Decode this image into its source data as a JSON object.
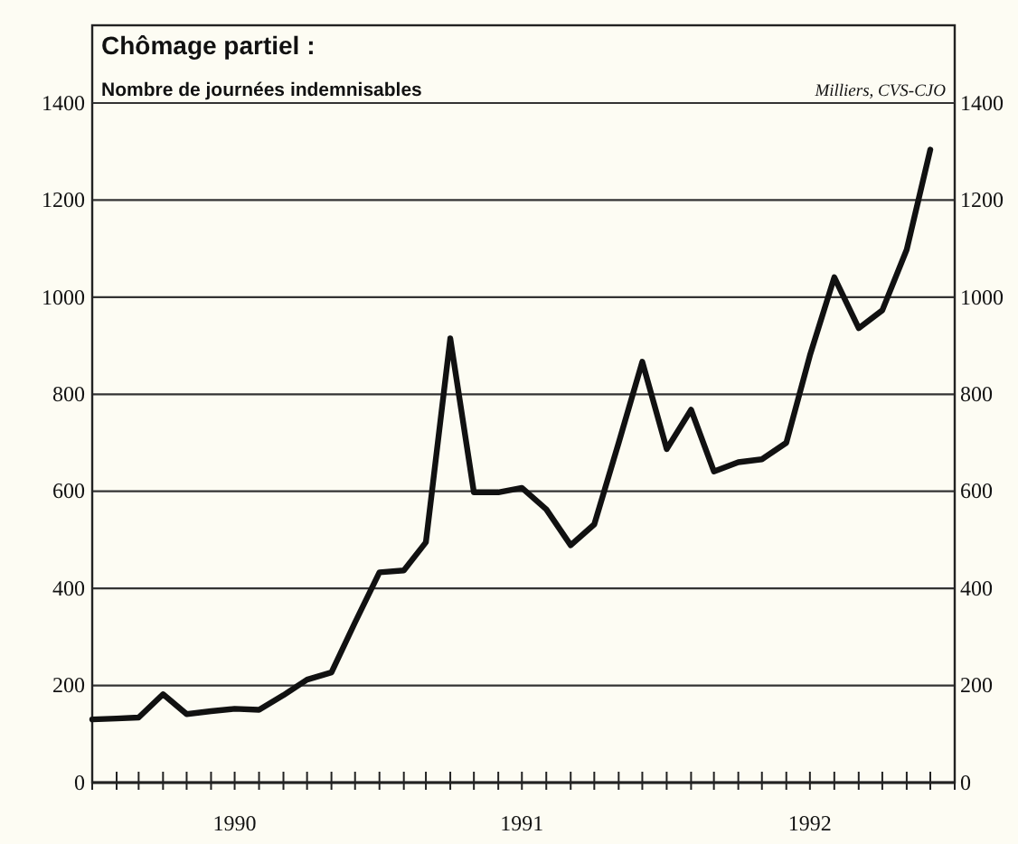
{
  "chart_data": {
    "type": "line",
    "title": "Chômage partiel :",
    "subtitle": "Nombre de journées indemnisables",
    "annotations": [
      "Milliers, CVS-CJO"
    ],
    "x": [
      "1990-01",
      "1990-02",
      "1990-03",
      "1990-04",
      "1990-05",
      "1990-06",
      "1990-07",
      "1990-08",
      "1990-09",
      "1990-10",
      "1990-11",
      "1990-12",
      "1991-01",
      "1991-02",
      "1991-03",
      "1991-04",
      "1991-05",
      "1991-06",
      "1991-07",
      "1991-08",
      "1991-09",
      "1991-10",
      "1991-11",
      "1991-12",
      "1992-01",
      "1992-02",
      "1992-03",
      "1992-04",
      "1992-05",
      "1992-06",
      "1992-07",
      "1992-08",
      "1992-09",
      "1992-10",
      "1992-11",
      "1992-12"
    ],
    "series": [
      {
        "color": "#111111",
        "values": [
          130,
          132,
          134,
          182,
          141,
          147,
          152,
          150,
          180,
          212,
          227,
          330,
          433,
          437,
          495,
          915,
          598,
          598,
          607,
          563,
          489,
          532,
          700,
          867,
          687,
          768,
          641,
          660,
          666,
          700,
          880,
          1041,
          936,
          973,
          1098,
          1304
        ]
      }
    ],
    "xlim": [
      "1990-01",
      "1993-01"
    ],
    "xticks": [
      {
        "value": "1990-01",
        "label": null
      },
      {
        "value": "1990-02",
        "label": null
      },
      {
        "value": "1990-03",
        "label": null
      },
      {
        "value": "1990-04",
        "label": null
      },
      {
        "value": "1990-05",
        "label": null
      },
      {
        "value": "1990-06",
        "label": null
      },
      {
        "value": "1990-07",
        "label": "1990"
      },
      {
        "value": "1990-08",
        "label": null
      },
      {
        "value": "1990-09",
        "label": null
      },
      {
        "value": "1990-10",
        "label": null
      },
      {
        "value": "1990-11",
        "label": null
      },
      {
        "value": "1990-12",
        "label": null
      },
      {
        "value": "1991-01",
        "label": null
      },
      {
        "value": "1991-02",
        "label": null
      },
      {
        "value": "1991-03",
        "label": null
      },
      {
        "value": "1991-04",
        "label": null
      },
      {
        "value": "1991-05",
        "label": null
      },
      {
        "value": "1991-06",
        "label": null
      },
      {
        "value": "1991-07",
        "label": "1991"
      },
      {
        "value": "1991-08",
        "label": null
      },
      {
        "value": "1991-09",
        "label": null
      },
      {
        "value": "1991-10",
        "label": null
      },
      {
        "value": "1991-11",
        "label": null
      },
      {
        "value": "1991-12",
        "label": null
      },
      {
        "value": "1992-01",
        "label": null
      },
      {
        "value": "1992-02",
        "label": null
      },
      {
        "value": "1992-03",
        "label": null
      },
      {
        "value": "1992-04",
        "label": null
      },
      {
        "value": "1992-05",
        "label": null
      },
      {
        "value": "1992-06",
        "label": null
      },
      {
        "value": "1992-07",
        "label": "1992"
      },
      {
        "value": "1992-08",
        "label": null
      },
      {
        "value": "1992-09",
        "label": null
      },
      {
        "value": "1992-10",
        "label": null
      },
      {
        "value": "1992-11",
        "label": null
      },
      {
        "value": "1992-12",
        "label": null
      },
      {
        "value": "1993-01",
        "label": null
      }
    ],
    "ylim": [
      0,
      1400
    ],
    "yticks": [
      0,
      200,
      400,
      600,
      800,
      1000,
      1200,
      1400
    ],
    "y2lim": [
      0,
      1400
    ],
    "y2ticks": [
      0,
      200,
      400,
      600,
      800,
      1000,
      1200,
      1400
    ],
    "grid": "y",
    "line_style": "solid",
    "marker": "none"
  }
}
